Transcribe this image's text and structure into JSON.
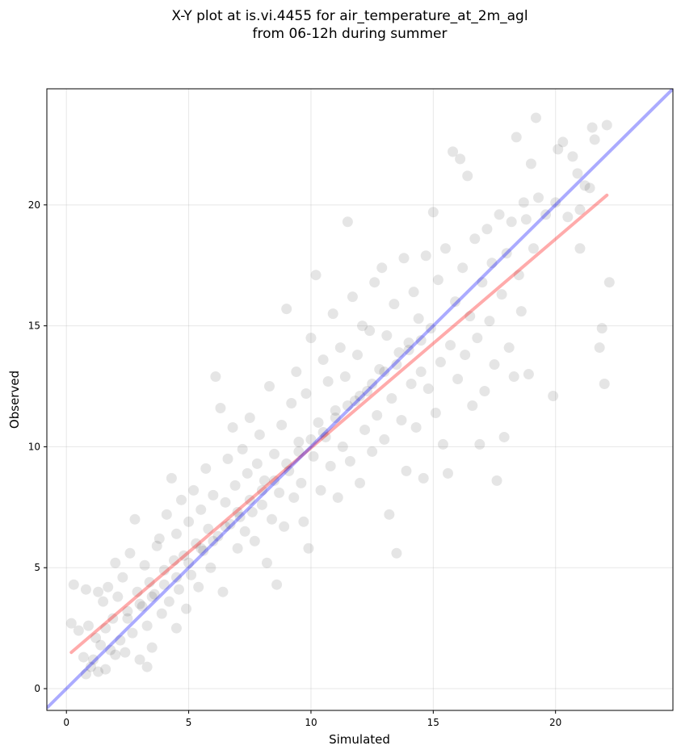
{
  "chart_data": {
    "type": "scatter",
    "title": "X-Y plot at is.vi.4455 for air_temperature_at_2m_agl\nfrom 06-12h during summer",
    "xlabel": "Simulated",
    "ylabel": "Observed",
    "xlim": [
      -0.8,
      24.8
    ],
    "ylim": [
      -0.9,
      24.8
    ],
    "x_ticks": [
      0,
      5,
      10,
      15,
      20
    ],
    "y_ticks": [
      0,
      5,
      10,
      15,
      20
    ],
    "grid": true,
    "point_color": "#000000",
    "point_opacity": 0.1,
    "identity_line": {
      "color": "#0000ff",
      "x": [
        -0.8,
        24.8
      ],
      "y": [
        -0.8,
        24.8
      ]
    },
    "regression_line": {
      "color": "#ff0000",
      "x": [
        0.2,
        22.1
      ],
      "y": [
        1.5,
        20.4
      ]
    },
    "points": [
      [
        0.2,
        2.7
      ],
      [
        0.3,
        4.3
      ],
      [
        0.5,
        2.4
      ],
      [
        0.7,
        1.3
      ],
      [
        0.8,
        4.1
      ],
      [
        0.8,
        0.6
      ],
      [
        0.9,
        2.6
      ],
      [
        1.0,
        0.9
      ],
      [
        1.1,
        1.2
      ],
      [
        1.2,
        2.1
      ],
      [
        1.3,
        4.0
      ],
      [
        1.3,
        0.7
      ],
      [
        1.4,
        1.8
      ],
      [
        1.5,
        3.6
      ],
      [
        1.6,
        0.8
      ],
      [
        1.6,
        2.5
      ],
      [
        1.7,
        4.2
      ],
      [
        1.8,
        1.6
      ],
      [
        1.9,
        2.9
      ],
      [
        2.0,
        1.4
      ],
      [
        2.0,
        5.2
      ],
      [
        2.1,
        3.8
      ],
      [
        2.2,
        2.0
      ],
      [
        2.3,
        4.6
      ],
      [
        2.4,
        1.5
      ],
      [
        2.5,
        3.2
      ],
      [
        2.6,
        5.6
      ],
      [
        2.7,
        2.3
      ],
      [
        2.8,
        7.0
      ],
      [
        2.9,
        4.0
      ],
      [
        3.0,
        1.2
      ],
      [
        3.1,
        3.4
      ],
      [
        3.2,
        5.1
      ],
      [
        3.3,
        0.9
      ],
      [
        3.3,
        2.6
      ],
      [
        3.4,
        4.4
      ],
      [
        3.5,
        1.7
      ],
      [
        3.6,
        3.9
      ],
      [
        3.7,
        5.9
      ],
      [
        3.8,
        6.2
      ],
      [
        3.9,
        3.1
      ],
      [
        4.0,
        4.9
      ],
      [
        4.1,
        7.2
      ],
      [
        4.2,
        3.6
      ],
      [
        4.3,
        8.7
      ],
      [
        4.4,
        5.3
      ],
      [
        4.5,
        2.5
      ],
      [
        4.5,
        6.4
      ],
      [
        4.6,
        4.1
      ],
      [
        4.7,
        7.8
      ],
      [
        4.8,
        5.5
      ],
      [
        4.9,
        3.3
      ],
      [
        5.0,
        6.9
      ],
      [
        5.1,
        4.7
      ],
      [
        5.2,
        8.2
      ],
      [
        5.3,
        6.0
      ],
      [
        5.4,
        4.2
      ],
      [
        5.5,
        7.4
      ],
      [
        5.6,
        5.7
      ],
      [
        5.7,
        9.1
      ],
      [
        5.8,
        6.6
      ],
      [
        5.9,
        5.0
      ],
      [
        6.0,
        8.0
      ],
      [
        6.1,
        12.9
      ],
      [
        6.2,
        6.3
      ],
      [
        6.3,
        11.6
      ],
      [
        6.4,
        4.0
      ],
      [
        6.5,
        7.7
      ],
      [
        6.6,
        9.5
      ],
      [
        6.7,
        6.8
      ],
      [
        6.8,
        10.8
      ],
      [
        6.9,
        8.4
      ],
      [
        7.0,
        5.8
      ],
      [
        7.1,
        7.1
      ],
      [
        7.2,
        9.9
      ],
      [
        7.3,
        6.5
      ],
      [
        7.4,
        8.9
      ],
      [
        7.5,
        11.2
      ],
      [
        7.6,
        7.3
      ],
      [
        7.7,
        6.1
      ],
      [
        7.8,
        9.3
      ],
      [
        7.9,
        10.5
      ],
      [
        8.0,
        7.6
      ],
      [
        8.1,
        8.6
      ],
      [
        8.2,
        5.2
      ],
      [
        8.3,
        12.5
      ],
      [
        8.4,
        7.0
      ],
      [
        8.5,
        9.7
      ],
      [
        8.6,
        4.3
      ],
      [
        8.7,
        8.1
      ],
      [
        8.8,
        10.9
      ],
      [
        8.9,
        6.7
      ],
      [
        9.0,
        15.7
      ],
      [
        9.1,
        9.0
      ],
      [
        9.2,
        11.8
      ],
      [
        9.3,
        7.9
      ],
      [
        9.4,
        13.1
      ],
      [
        9.5,
        10.2
      ],
      [
        9.6,
        8.5
      ],
      [
        9.7,
        6.9
      ],
      [
        9.8,
        12.2
      ],
      [
        9.9,
        5.8
      ],
      [
        10.0,
        14.5
      ],
      [
        10.1,
        9.6
      ],
      [
        10.2,
        17.1
      ],
      [
        10.3,
        11.0
      ],
      [
        10.4,
        8.2
      ],
      [
        10.5,
        13.6
      ],
      [
        10.6,
        10.4
      ],
      [
        10.7,
        12.7
      ],
      [
        10.8,
        9.2
      ],
      [
        10.9,
        15.5
      ],
      [
        11.0,
        11.5
      ],
      [
        11.1,
        7.9
      ],
      [
        11.2,
        14.1
      ],
      [
        11.3,
        10.0
      ],
      [
        11.4,
        12.9
      ],
      [
        11.5,
        19.3
      ],
      [
        11.6,
        9.4
      ],
      [
        11.7,
        16.2
      ],
      [
        11.8,
        11.9
      ],
      [
        11.9,
        13.8
      ],
      [
        12.0,
        8.5
      ],
      [
        12.1,
        15.0
      ],
      [
        12.2,
        10.7
      ],
      [
        12.3,
        12.3
      ],
      [
        12.4,
        14.8
      ],
      [
        12.5,
        9.8
      ],
      [
        12.6,
        16.8
      ],
      [
        12.7,
        11.3
      ],
      [
        12.8,
        13.2
      ],
      [
        12.9,
        17.4
      ],
      [
        13.0,
        10.3
      ],
      [
        13.1,
        14.6
      ],
      [
        13.2,
        7.2
      ],
      [
        13.3,
        12.0
      ],
      [
        13.4,
        15.9
      ],
      [
        13.5,
        5.6
      ],
      [
        13.6,
        13.9
      ],
      [
        13.7,
        11.1
      ],
      [
        13.8,
        17.8
      ],
      [
        13.9,
        9.0
      ],
      [
        14.0,
        14.3
      ],
      [
        14.1,
        12.6
      ],
      [
        14.2,
        16.4
      ],
      [
        14.3,
        10.8
      ],
      [
        14.4,
        15.3
      ],
      [
        14.5,
        13.1
      ],
      [
        14.6,
        8.7
      ],
      [
        14.7,
        17.9
      ],
      [
        14.8,
        12.4
      ],
      [
        14.9,
        14.9
      ],
      [
        15.0,
        19.7
      ],
      [
        15.1,
        11.4
      ],
      [
        15.2,
        16.9
      ],
      [
        15.3,
        13.5
      ],
      [
        15.4,
        10.1
      ],
      [
        15.5,
        18.2
      ],
      [
        15.6,
        8.9
      ],
      [
        15.7,
        14.2
      ],
      [
        15.8,
        22.2
      ],
      [
        15.9,
        16.0
      ],
      [
        16.0,
        12.8
      ],
      [
        16.1,
        21.9
      ],
      [
        16.2,
        17.4
      ],
      [
        16.3,
        13.8
      ],
      [
        16.4,
        21.2
      ],
      [
        16.5,
        15.4
      ],
      [
        16.6,
        11.7
      ],
      [
        16.7,
        18.6
      ],
      [
        16.8,
        14.5
      ],
      [
        16.9,
        10.1
      ],
      [
        17.0,
        16.8
      ],
      [
        17.1,
        12.3
      ],
      [
        17.2,
        19.0
      ],
      [
        17.3,
        15.2
      ],
      [
        17.4,
        17.6
      ],
      [
        17.5,
        13.4
      ],
      [
        17.6,
        8.6
      ],
      [
        17.7,
        19.6
      ],
      [
        17.8,
        16.3
      ],
      [
        17.9,
        10.4
      ],
      [
        18.0,
        18.0
      ],
      [
        18.1,
        14.1
      ],
      [
        18.2,
        19.3
      ],
      [
        18.3,
        12.9
      ],
      [
        18.4,
        22.8
      ],
      [
        18.5,
        17.1
      ],
      [
        18.6,
        15.6
      ],
      [
        18.7,
        20.1
      ],
      [
        18.8,
        19.4
      ],
      [
        18.9,
        13.0
      ],
      [
        19.0,
        21.7
      ],
      [
        19.1,
        18.2
      ],
      [
        19.2,
        23.6
      ],
      [
        19.3,
        20.3
      ],
      [
        19.6,
        19.6
      ],
      [
        19.9,
        12.1
      ],
      [
        20.0,
        20.1
      ],
      [
        20.1,
        22.3
      ],
      [
        20.3,
        22.6
      ],
      [
        20.5,
        19.5
      ],
      [
        20.7,
        22.0
      ],
      [
        20.9,
        21.3
      ],
      [
        21.0,
        19.8
      ],
      [
        21.2,
        20.8
      ],
      [
        21.0,
        18.2
      ],
      [
        21.4,
        20.7
      ],
      [
        21.5,
        23.2
      ],
      [
        21.6,
        22.7
      ],
      [
        21.8,
        14.1
      ],
      [
        21.9,
        14.9
      ],
      [
        22.0,
        12.6
      ],
      [
        22.1,
        23.3
      ],
      [
        22.2,
        16.8
      ],
      [
        2.5,
        2.9
      ],
      [
        3.0,
        3.5
      ],
      [
        3.5,
        3.8
      ],
      [
        4.0,
        4.3
      ],
      [
        4.5,
        4.6
      ],
      [
        5.0,
        5.2
      ],
      [
        5.5,
        5.8
      ],
      [
        6.0,
        6.1
      ],
      [
        6.5,
        6.7
      ],
      [
        7.0,
        7.3
      ],
      [
        7.5,
        7.8
      ],
      [
        8.0,
        8.2
      ],
      [
        8.5,
        8.6
      ],
      [
        9.0,
        9.3
      ],
      [
        9.5,
        9.8
      ],
      [
        10.0,
        10.3
      ],
      [
        10.5,
        10.6
      ],
      [
        11.0,
        11.2
      ],
      [
        11.5,
        11.7
      ],
      [
        12.0,
        12.1
      ],
      [
        12.5,
        12.6
      ],
      [
        13.0,
        13.1
      ],
      [
        13.5,
        13.4
      ],
      [
        14.0,
        14.0
      ],
      [
        14.5,
        14.4
      ]
    ]
  }
}
